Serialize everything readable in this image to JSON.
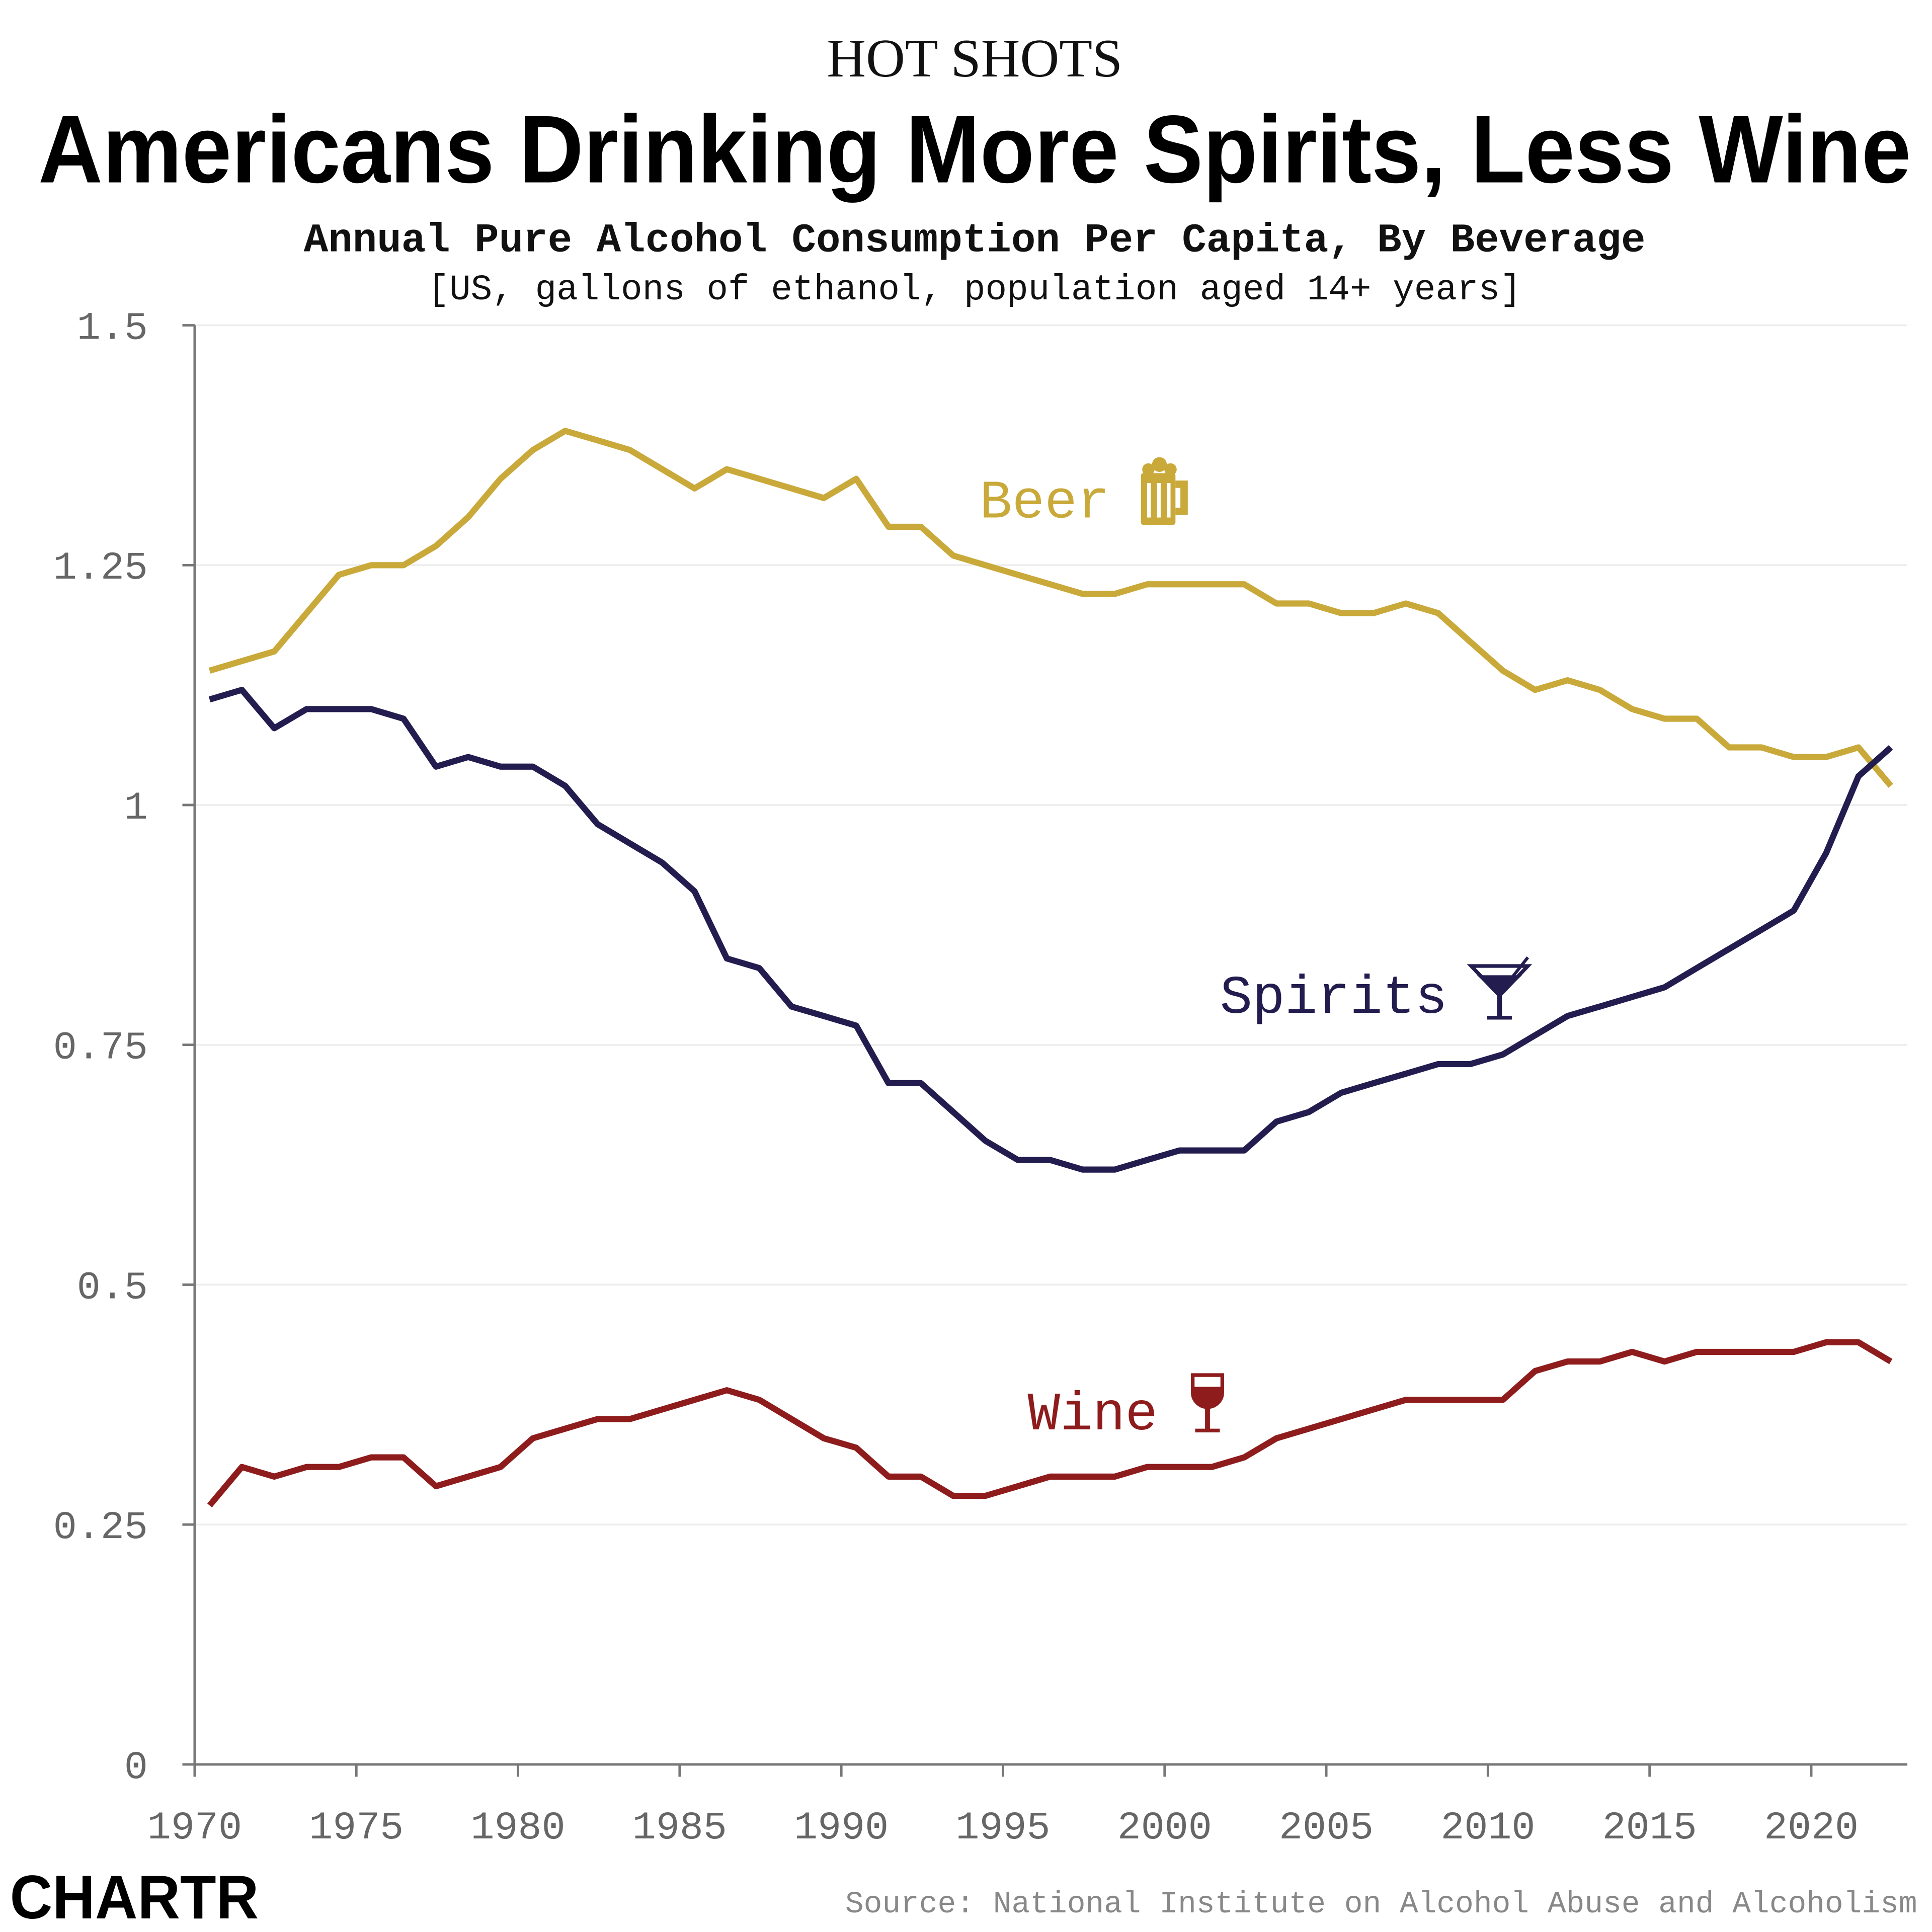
{
  "kicker": "HOT SHOTS",
  "title": "Americans Drinking More Spirits, Less Wine",
  "subtitle": "Annual Pure Alcohol Consumption Per Capita, By Beverage",
  "note": "[US, gallons of ethanol, population aged 14+ years]",
  "source": "Source: National Institute on Alcohol Abuse and Alcoholism",
  "logo": "CHARTR",
  "chart_data": {
    "type": "line",
    "title": "Americans Drinking More Spirits, Less Wine",
    "xlabel": "",
    "ylabel": "",
    "xlim": [
      1970,
      2023
    ],
    "ylim": [
      0,
      1.5
    ],
    "x_ticks": [
      "1970",
      "1975",
      "1980",
      "1985",
      "1990",
      "1995",
      "2000",
      "2005",
      "2010",
      "2015",
      "2020"
    ],
    "y_ticks": [
      "0",
      "0.25",
      "0.5",
      "0.75",
      "1",
      "1.25",
      "1.5"
    ],
    "grid": "horizontal",
    "legend": "inline labels",
    "x": [
      1970,
      1971,
      1972,
      1973,
      1974,
      1975,
      1976,
      1977,
      1978,
      1979,
      1980,
      1981,
      1982,
      1983,
      1984,
      1985,
      1986,
      1987,
      1988,
      1989,
      1990,
      1991,
      1992,
      1993,
      1994,
      1995,
      1996,
      1997,
      1998,
      1999,
      2000,
      2001,
      2002,
      2003,
      2004,
      2005,
      2006,
      2007,
      2008,
      2009,
      2010,
      2011,
      2012,
      2013,
      2014,
      2015,
      2016,
      2017,
      2018,
      2019,
      2020,
      2021,
      2022
    ],
    "series": [
      {
        "name": "Beer",
        "color": "#C9A93A",
        "icon": "beer-mug-icon",
        "values": [
          1.14,
          1.15,
          1.16,
          1.2,
          1.24,
          1.25,
          1.25,
          1.27,
          1.3,
          1.34,
          1.37,
          1.39,
          1.38,
          1.37,
          1.35,
          1.33,
          1.35,
          1.34,
          1.33,
          1.32,
          1.34,
          1.29,
          1.29,
          1.26,
          1.25,
          1.24,
          1.23,
          1.22,
          1.22,
          1.23,
          1.23,
          1.23,
          1.23,
          1.21,
          1.21,
          1.2,
          1.2,
          1.21,
          1.2,
          1.17,
          1.14,
          1.12,
          1.13,
          1.12,
          1.1,
          1.09,
          1.09,
          1.06,
          1.06,
          1.05,
          1.05,
          1.06,
          1.02
        ]
      },
      {
        "name": "Spirits",
        "color": "#221C4F",
        "icon": "martini-glass-icon",
        "values": [
          1.11,
          1.12,
          1.08,
          1.1,
          1.1,
          1.1,
          1.09,
          1.04,
          1.05,
          1.04,
          1.04,
          1.02,
          0.98,
          0.96,
          0.94,
          0.91,
          0.84,
          0.83,
          0.79,
          0.78,
          0.77,
          0.71,
          0.71,
          0.68,
          0.65,
          0.63,
          0.63,
          0.62,
          0.62,
          0.63,
          0.64,
          0.64,
          0.64,
          0.67,
          0.68,
          0.7,
          0.71,
          0.72,
          0.73,
          0.73,
          0.74,
          0.76,
          0.78,
          0.79,
          0.8,
          0.81,
          0.83,
          0.85,
          0.87,
          0.89,
          0.95,
          1.03,
          1.06
        ]
      },
      {
        "name": "Wine",
        "color": "#8E1C1C",
        "icon": "wine-glass-icon",
        "values": [
          0.27,
          0.31,
          0.3,
          0.31,
          0.31,
          0.32,
          0.32,
          0.29,
          0.3,
          0.31,
          0.34,
          0.35,
          0.36,
          0.36,
          0.37,
          0.38,
          0.39,
          0.38,
          0.36,
          0.34,
          0.33,
          0.3,
          0.3,
          0.28,
          0.28,
          0.29,
          0.3,
          0.3,
          0.3,
          0.31,
          0.31,
          0.31,
          0.32,
          0.34,
          0.35,
          0.36,
          0.37,
          0.38,
          0.38,
          0.38,
          0.38,
          0.41,
          0.42,
          0.42,
          0.43,
          0.42,
          0.43,
          0.43,
          0.43,
          0.43,
          0.44,
          0.44,
          0.42
        ]
      }
    ]
  }
}
